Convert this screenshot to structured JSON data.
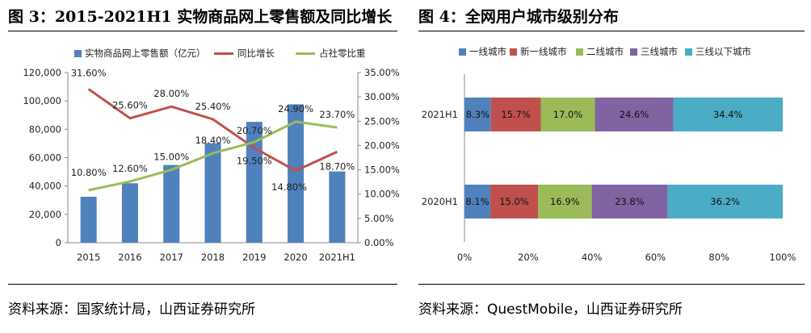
{
  "left": {
    "figure_title": "图 3：2015-2021H1 实物商品网上零售额及同比增长",
    "source": "资料来源：国家统计局，山西证券研究所"
  },
  "right": {
    "figure_title": "图 4：全网用户城市级别分布",
    "source": "资料来源：QuestMobile，山西证券研究所"
  },
  "chart_data": [
    {
      "type": "bar",
      "categories": [
        "2015",
        "2016",
        "2017",
        "2018",
        "2019",
        "2020",
        "2021H1"
      ],
      "series": [
        {
          "name": "实物商品网上零售额（亿元）",
          "type": "bar",
          "axis": "left",
          "values": [
            32424,
            41944,
            54806,
            70198,
            85239,
            97590,
            50263
          ],
          "color": "#4f81bd"
        },
        {
          "name": "同比增长",
          "type": "line",
          "axis": "right",
          "values": [
            31.6,
            25.6,
            28.0,
            25.4,
            19.5,
            14.8,
            18.7
          ],
          "labels": [
            "31.60%",
            "25.60%",
            "28.00%",
            "25.40%",
            "19.50%",
            "14.80%",
            "18.70%"
          ],
          "color": "#c0504d"
        },
        {
          "name": "占社零比重",
          "type": "line",
          "axis": "right",
          "values": [
            10.8,
            12.6,
            15.0,
            18.4,
            20.7,
            24.9,
            23.7
          ],
          "labels": [
            "10.80%",
            "12.60%",
            "15.00%",
            "18.40%",
            "20.70%",
            "24.90%",
            "23.70%"
          ],
          "color": "#9bbb59"
        }
      ],
      "ylim": [
        0,
        120000
      ],
      "yticks": [
        "0",
        "20,000",
        "40,000",
        "60,000",
        "80,000",
        "100,000",
        "120,000"
      ],
      "y2lim": [
        0,
        35
      ],
      "y2ticks": [
        "0.00%",
        "5.00%",
        "10.00%",
        "15.00%",
        "20.00%",
        "25.00%",
        "30.00%",
        "35.00%"
      ],
      "legend": "top"
    },
    {
      "type": "bar",
      "orientation": "horizontal",
      "stacked": true,
      "categories": [
        "2021H1",
        "2020H1"
      ],
      "series": [
        {
          "name": "一线城市",
          "values": [
            8.3,
            8.1
          ],
          "labels": [
            "8.3%",
            "8.1%"
          ],
          "color": "#4f81bd"
        },
        {
          "name": "新一线城市",
          "values": [
            15.7,
            15.0
          ],
          "labels": [
            "15.7%",
            "15.0%"
          ],
          "color": "#c0504d"
        },
        {
          "name": "二线城市",
          "values": [
            17.0,
            16.9
          ],
          "labels": [
            "17.0%",
            "16.9%"
          ],
          "color": "#9bbb59"
        },
        {
          "name": "三线城市",
          "values": [
            24.6,
            23.8
          ],
          "labels": [
            "24.6%",
            "23.8%"
          ],
          "color": "#8064a2"
        },
        {
          "name": "三线以下城市",
          "values": [
            34.4,
            36.2
          ],
          "labels": [
            "34.4%",
            "36.2%"
          ],
          "color": "#4bacc6"
        }
      ],
      "xlim": [
        0,
        100
      ],
      "xticks": [
        "0%",
        "20%",
        "40%",
        "60%",
        "80%",
        "100%"
      ],
      "legend": "top"
    }
  ]
}
